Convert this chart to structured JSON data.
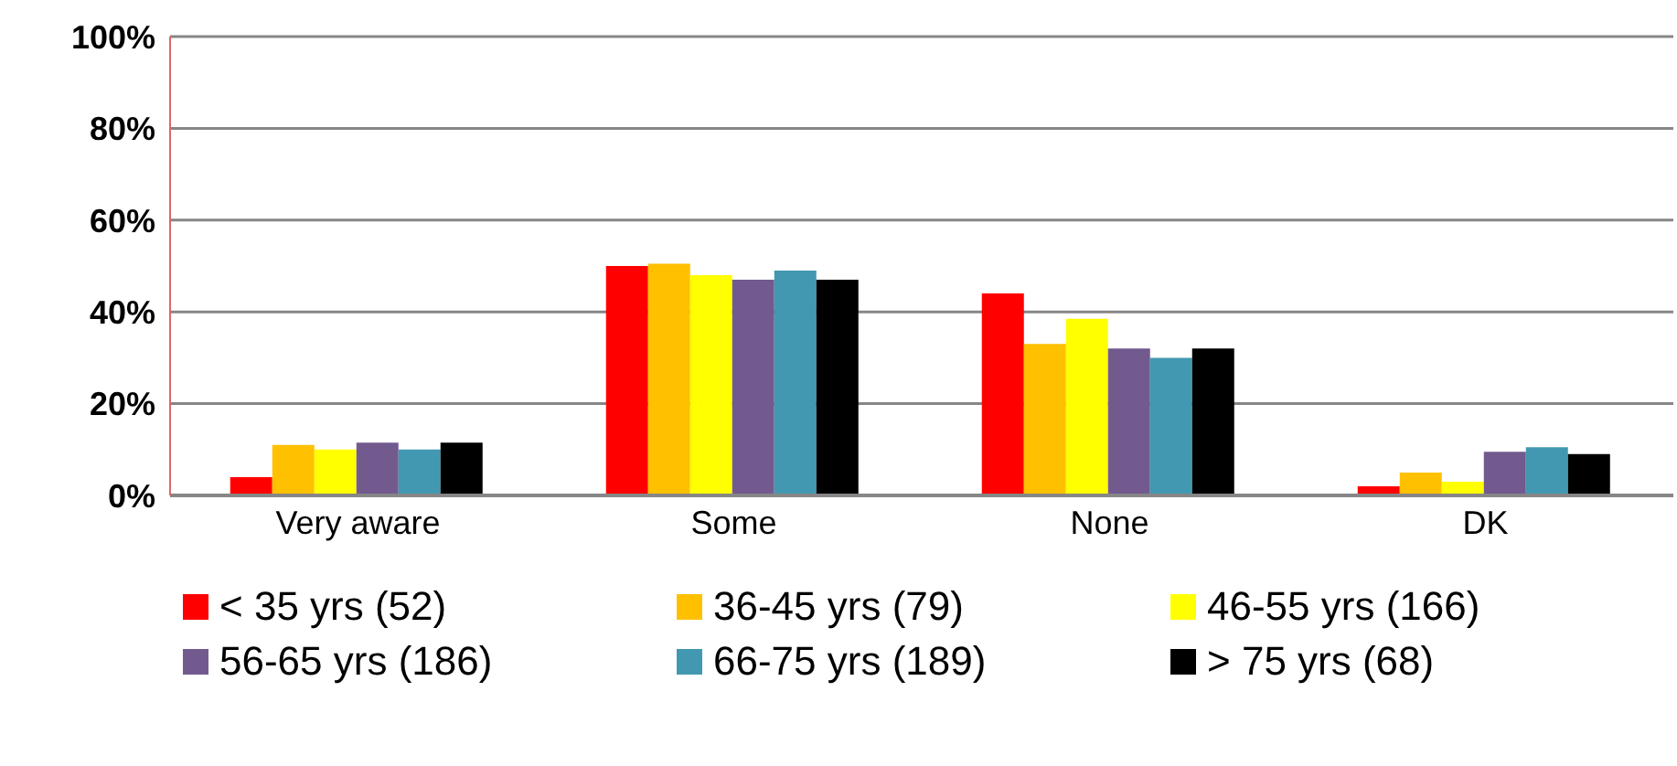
{
  "chart_data": {
    "type": "bar",
    "categories": [
      "Very aware",
      "Some",
      "None",
      "DK"
    ],
    "series": [
      {
        "name": "< 35 yrs (52)",
        "color": "#ff0000",
        "values": [
          4,
          50,
          44,
          2
        ]
      },
      {
        "name": "36-45 yrs (79)",
        "color": "#ffc000",
        "values": [
          11,
          50.5,
          33,
          5
        ]
      },
      {
        "name": "46-55 yrs (166)",
        "color": "#ffff00",
        "values": [
          10,
          48,
          38.5,
          3
        ]
      },
      {
        "name": "56-65 yrs (186)",
        "color": "#725a8f",
        "values": [
          11.5,
          47,
          32,
          9.5
        ]
      },
      {
        "name": "66-75 yrs (189)",
        "color": "#4298b0",
        "values": [
          10,
          49,
          30,
          10.5
        ]
      },
      {
        "name": "> 75 yrs (68)",
        "color": "#000000",
        "values": [
          11.5,
          47,
          32,
          9
        ]
      }
    ],
    "ylim": [
      0,
      100
    ],
    "yticks": [
      {
        "value": 0,
        "label": "0%"
      },
      {
        "value": 20,
        "label": "20%"
      },
      {
        "value": 40,
        "label": "40%"
      },
      {
        "value": 60,
        "label": "60%"
      },
      {
        "value": 80,
        "label": "80%"
      },
      {
        "value": 100,
        "label": "100%"
      }
    ],
    "grid": "y",
    "legend": "bottom"
  }
}
